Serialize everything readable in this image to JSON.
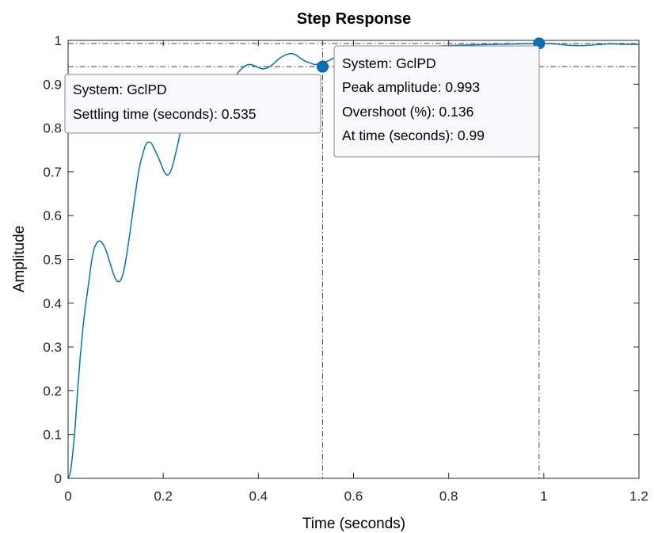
{
  "chart_data": {
    "type": "line",
    "title": "Step Response",
    "xlabel": "Time (seconds)",
    "ylabel": "Amplitude",
    "xlim": [
      0,
      1.2
    ],
    "ylim": [
      0,
      1
    ],
    "xticks": [
      "0",
      "0.2",
      "0.4",
      "0.6",
      "0.8",
      "1",
      "1.2"
    ],
    "yticks": [
      "0",
      "0.1",
      "0.2",
      "0.3",
      "0.4",
      "0.5",
      "0.6",
      "0.7",
      "0.8",
      "0.9",
      "1"
    ],
    "grid": false,
    "series": [
      {
        "color": "#0072bd",
        "points": [
          [
            0,
            0
          ],
          [
            0.005,
            0.015
          ],
          [
            0.01,
            0.06
          ],
          [
            0.015,
            0.12
          ],
          [
            0.02,
            0.2
          ],
          [
            0.025,
            0.27
          ],
          [
            0.03,
            0.33
          ],
          [
            0.035,
            0.38
          ],
          [
            0.04,
            0.42
          ],
          [
            0.045,
            0.46
          ],
          [
            0.05,
            0.5
          ],
          [
            0.055,
            0.525
          ],
          [
            0.06,
            0.537
          ],
          [
            0.065,
            0.542
          ],
          [
            0.07,
            0.54
          ],
          [
            0.075,
            0.532
          ],
          [
            0.08,
            0.52
          ],
          [
            0.085,
            0.503
          ],
          [
            0.09,
            0.485
          ],
          [
            0.095,
            0.468
          ],
          [
            0.1,
            0.455
          ],
          [
            0.105,
            0.449
          ],
          [
            0.11,
            0.452
          ],
          [
            0.115,
            0.465
          ],
          [
            0.12,
            0.49
          ],
          [
            0.13,
            0.56
          ],
          [
            0.14,
            0.64
          ],
          [
            0.15,
            0.71
          ],
          [
            0.16,
            0.752
          ],
          [
            0.165,
            0.765
          ],
          [
            0.17,
            0.768
          ],
          [
            0.175,
            0.765
          ],
          [
            0.18,
            0.755
          ],
          [
            0.19,
            0.732
          ],
          [
            0.2,
            0.705
          ],
          [
            0.205,
            0.695
          ],
          [
            0.21,
            0.693
          ],
          [
            0.215,
            0.7
          ],
          [
            0.22,
            0.715
          ],
          [
            0.23,
            0.76
          ],
          [
            0.24,
            0.81
          ],
          [
            0.25,
            0.852
          ],
          [
            0.26,
            0.885
          ],
          [
            0.27,
            0.905
          ],
          [
            0.28,
            0.91
          ],
          [
            0.29,
            0.905
          ],
          [
            0.3,
            0.895
          ],
          [
            0.31,
            0.885
          ],
          [
            0.32,
            0.883
          ],
          [
            0.33,
            0.888
          ],
          [
            0.34,
            0.9
          ],
          [
            0.35,
            0.915
          ],
          [
            0.36,
            0.93
          ],
          [
            0.37,
            0.94
          ],
          [
            0.38,
            0.945
          ],
          [
            0.39,
            0.943
          ],
          [
            0.4,
            0.938
          ],
          [
            0.41,
            0.935
          ],
          [
            0.42,
            0.938
          ],
          [
            0.43,
            0.945
          ],
          [
            0.44,
            0.955
          ],
          [
            0.45,
            0.963
          ],
          [
            0.46,
            0.968
          ],
          [
            0.47,
            0.97
          ],
          [
            0.48,
            0.966
          ],
          [
            0.49,
            0.958
          ],
          [
            0.5,
            0.952
          ],
          [
            0.51,
            0.948
          ],
          [
            0.52,
            0.945
          ],
          [
            0.53,
            0.947
          ],
          [
            0.535,
            0.948
          ],
          [
            0.55,
            0.955
          ],
          [
            0.57,
            0.965
          ],
          [
            0.6,
            0.972
          ],
          [
            0.63,
            0.976
          ],
          [
            0.66,
            0.979
          ],
          [
            0.7,
            0.982
          ],
          [
            0.74,
            0.985
          ],
          [
            0.78,
            0.987
          ],
          [
            0.82,
            0.989
          ],
          [
            0.86,
            0.99
          ],
          [
            0.9,
            0.991
          ],
          [
            0.95,
            0.992
          ],
          [
            0.99,
            0.993
          ],
          [
            1.02,
            0.992
          ],
          [
            1.05,
            0.989
          ],
          [
            1.08,
            0.988
          ],
          [
            1.11,
            0.99
          ],
          [
            1.14,
            0.992
          ],
          [
            1.17,
            0.991
          ],
          [
            1.2,
            0.991
          ]
        ]
      }
    ],
    "reference_lines": {
      "horizontal": [
        1.0,
        0.993,
        0.94
      ],
      "vertical": [
        0.535,
        0.99
      ]
    },
    "markers": [
      {
        "name": "settling-point",
        "x": 0.535,
        "y": 0.94
      },
      {
        "name": "peak-point",
        "x": 0.99,
        "y": 0.993
      }
    ],
    "annotations": [
      {
        "name": "settling-datatip",
        "lines": [
          "System: GclPD",
          "Settling time (seconds): 0.535"
        ]
      },
      {
        "name": "peak-datatip",
        "lines": [
          "System: GclPD",
          "Peak amplitude: 0.993",
          "Overshoot (%): 0.136",
          "At time (seconds): 0.99"
        ]
      }
    ]
  }
}
